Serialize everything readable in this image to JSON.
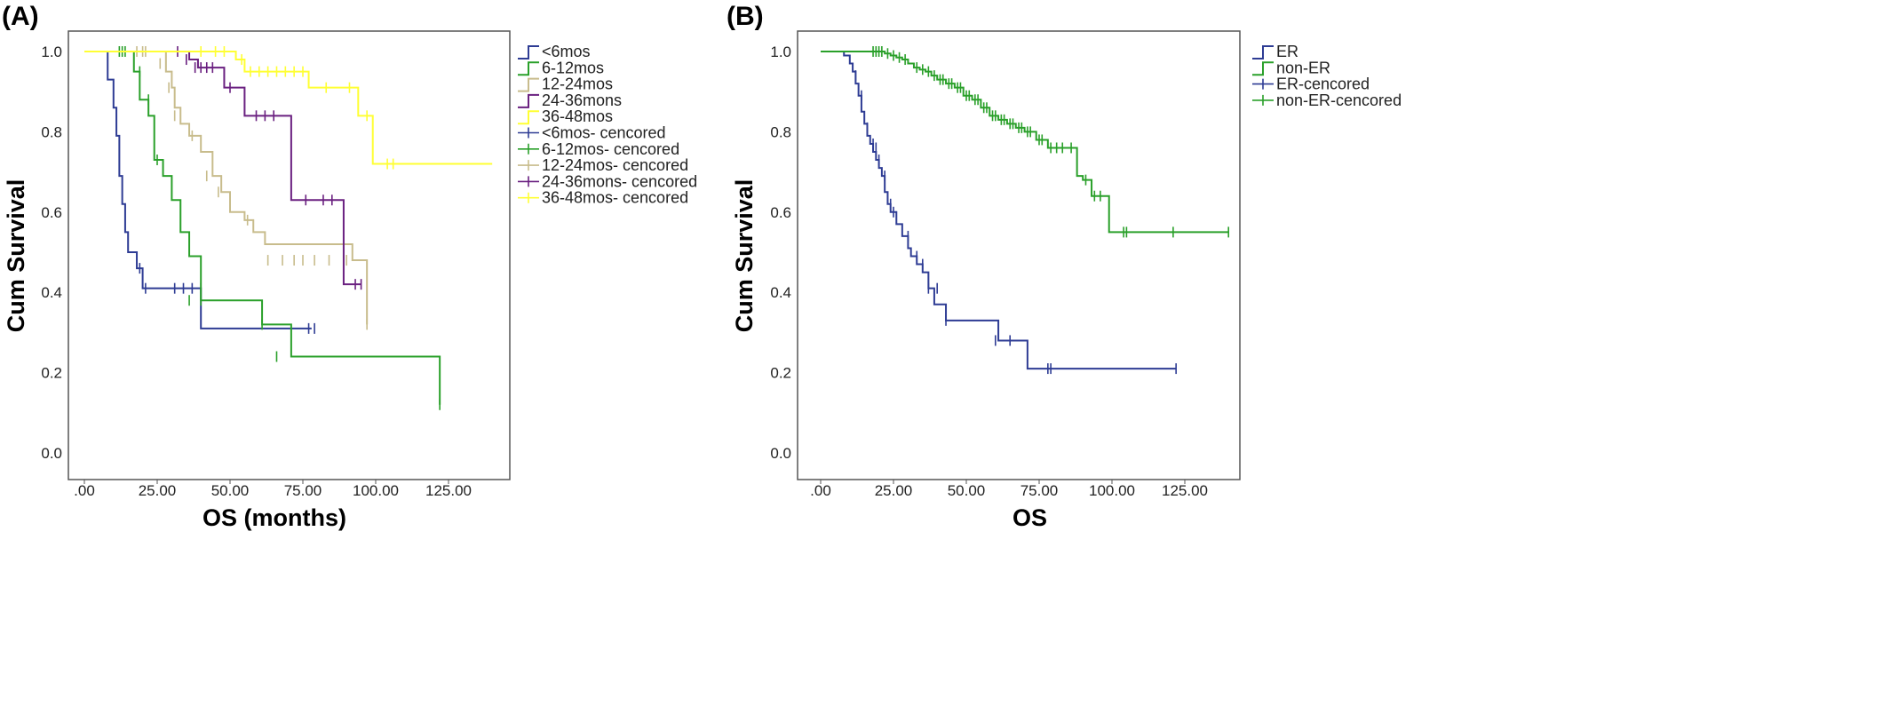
{
  "chart_data": [
    {
      "type": "line",
      "panel_label": "(A)",
      "xlabel": "OS (months)",
      "ylabel": "Cum Survival",
      "xticks": [
        ".00",
        "25.00",
        "50.00",
        "75.00",
        "100.00",
        "125.00"
      ],
      "yticks": [
        "0.0",
        "0.2",
        "0.4",
        "0.6",
        "0.8",
        "1.0"
      ],
      "xlim": [
        -5,
        140
      ],
      "ylim": [
        -0.04,
        1.04
      ],
      "grid": false,
      "legend_position": "right",
      "legend": [
        "<6mos",
        "6-12mos",
        "12-24mos",
        "24-36mons",
        "36-48mos",
        "<6mos- cencored",
        "6-12mos- cencored",
        "12-24mos- cencored",
        "24-36mons- cencored",
        "36-48mos- cencored"
      ],
      "series": [
        {
          "name": "<6mos",
          "color": "#2e3c94",
          "x": [
            0,
            6,
            8,
            10,
            11,
            12,
            13,
            14,
            15,
            18,
            20,
            40,
            78
          ],
          "y": [
            1.0,
            1.0,
            0.93,
            0.86,
            0.79,
            0.69,
            0.62,
            0.55,
            0.5,
            0.46,
            0.41,
            0.31,
            0.31
          ],
          "censored": [
            [
              19,
              0.46
            ],
            [
              21,
              0.41
            ],
            [
              31,
              0.41
            ],
            [
              34,
              0.41
            ],
            [
              37,
              0.41
            ],
            [
              40,
              0.41
            ],
            [
              77,
              0.31
            ],
            [
              79,
              0.31
            ]
          ]
        },
        {
          "name": "6-12mos",
          "color": "#2aa02a",
          "x": [
            0,
            14,
            17,
            19,
            22,
            24,
            27,
            30,
            33,
            36,
            40,
            61,
            71,
            122
          ],
          "y": [
            1.0,
            1.0,
            0.95,
            0.88,
            0.84,
            0.73,
            0.69,
            0.63,
            0.55,
            0.49,
            0.38,
            0.32,
            0.24,
            0.12
          ],
          "censored": [
            [
              12,
              1.0
            ],
            [
              13,
              1.0
            ],
            [
              14,
              1.0
            ],
            [
              19,
              0.95
            ],
            [
              22,
              0.88
            ],
            [
              25,
              0.73
            ],
            [
              36,
              0.38
            ],
            [
              40,
              0.38
            ],
            [
              61,
              0.32
            ],
            [
              66,
              0.24
            ],
            [
              122,
              0.12
            ]
          ]
        },
        {
          "name": "12-24mos",
          "color": "#c8bc8c",
          "x": [
            0,
            25,
            28,
            30,
            31,
            33,
            36,
            40,
            44,
            47,
            50,
            55,
            58,
            62,
            92,
            97
          ],
          "y": [
            1.0,
            1.0,
            0.95,
            0.91,
            0.86,
            0.82,
            0.79,
            0.75,
            0.69,
            0.65,
            0.6,
            0.58,
            0.55,
            0.52,
            0.48,
            0.32
          ],
          "censored": [
            [
              18,
              1.0
            ],
            [
              20,
              1.0
            ],
            [
              21,
              1.0
            ],
            [
              26,
              0.97
            ],
            [
              29,
              0.91
            ],
            [
              31,
              0.84
            ],
            [
              37,
              0.79
            ],
            [
              42,
              0.69
            ],
            [
              46,
              0.65
            ],
            [
              56,
              0.58
            ],
            [
              63,
              0.48
            ],
            [
              68,
              0.48
            ],
            [
              72,
              0.48
            ],
            [
              75,
              0.48
            ],
            [
              79,
              0.48
            ],
            [
              84,
              0.48
            ],
            [
              90,
              0.48
            ],
            [
              97,
              0.32
            ]
          ]
        },
        {
          "name": "24-36mons",
          "color": "#6a2080",
          "x": [
            0,
            33,
            36,
            39,
            48,
            55,
            71,
            89,
            95
          ],
          "y": [
            1.0,
            1.0,
            0.98,
            0.96,
            0.91,
            0.84,
            0.63,
            0.42,
            0.42
          ],
          "censored": [
            [
              32,
              1.0
            ],
            [
              35,
              0.98
            ],
            [
              38,
              0.96
            ],
            [
              40,
              0.96
            ],
            [
              42,
              0.96
            ],
            [
              44,
              0.96
            ],
            [
              50,
              0.91
            ],
            [
              59,
              0.84
            ],
            [
              62,
              0.84
            ],
            [
              65,
              0.84
            ],
            [
              76,
              0.63
            ],
            [
              82,
              0.63
            ],
            [
              85,
              0.63
            ],
            [
              93,
              0.42
            ],
            [
              95,
              0.42
            ]
          ]
        },
        {
          "name": "36-48mos",
          "color": "#ffff33",
          "x": [
            0,
            48,
            52,
            55,
            77,
            94,
            99,
            140
          ],
          "y": [
            1.0,
            1.0,
            0.98,
            0.95,
            0.91,
            0.84,
            0.72,
            0.72
          ],
          "censored": [
            [
              40,
              1.0
            ],
            [
              45,
              1.0
            ],
            [
              48,
              1.0
            ],
            [
              54,
              0.98
            ],
            [
              57,
              0.95
            ],
            [
              60,
              0.95
            ],
            [
              63,
              0.95
            ],
            [
              66,
              0.95
            ],
            [
              69,
              0.95
            ],
            [
              72,
              0.95
            ],
            [
              75,
              0.95
            ],
            [
              83,
              0.91
            ],
            [
              91,
              0.91
            ],
            [
              97,
              0.84
            ],
            [
              104,
              0.72
            ],
            [
              106,
              0.72
            ]
          ]
        }
      ]
    },
    {
      "type": "line",
      "panel_label": "(B)",
      "xlabel": "OS",
      "ylabel": "Cum Survival",
      "xticks": [
        ".00",
        "25.00",
        "50.00",
        "75.00",
        "100.00",
        "125.00"
      ],
      "yticks": [
        "0.0",
        "0.2",
        "0.4",
        "0.6",
        "0.8",
        "1.0"
      ],
      "xlim": [
        -5,
        140
      ],
      "ylim": [
        -0.04,
        1.04
      ],
      "grid": false,
      "legend_position": "top-right",
      "legend": [
        "ER",
        "non-ER",
        "ER-cencored",
        "non-ER-cencored"
      ],
      "series": [
        {
          "name": "ER",
          "color": "#2e3c94",
          "x": [
            0,
            6,
            8,
            10,
            11,
            12,
            13,
            14,
            15,
            16,
            17,
            18,
            19,
            20,
            21,
            22,
            23,
            24,
            26,
            28,
            30,
            31,
            33,
            35,
            37,
            39,
            43,
            61,
            71,
            122
          ],
          "y": [
            1.0,
            1.0,
            0.99,
            0.97,
            0.95,
            0.92,
            0.89,
            0.85,
            0.82,
            0.79,
            0.77,
            0.75,
            0.73,
            0.71,
            0.69,
            0.65,
            0.62,
            0.6,
            0.57,
            0.54,
            0.51,
            0.49,
            0.47,
            0.45,
            0.41,
            0.37,
            0.33,
            0.28,
            0.21,
            0.21
          ],
          "censored": [
            [
              12,
              0.94
            ],
            [
              14,
              0.89
            ],
            [
              16,
              0.81
            ],
            [
              18,
              0.77
            ],
            [
              19,
              0.76
            ],
            [
              20,
              0.73
            ],
            [
              22,
              0.69
            ],
            [
              24,
              0.62
            ],
            [
              25,
              0.6
            ],
            [
              30,
              0.54
            ],
            [
              33,
              0.49
            ],
            [
              35,
              0.47
            ],
            [
              37,
              0.41
            ],
            [
              40,
              0.41
            ],
            [
              43,
              0.33
            ],
            [
              60,
              0.28
            ],
            [
              65,
              0.28
            ],
            [
              78,
              0.21
            ],
            [
              79,
              0.21
            ],
            [
              122,
              0.21
            ]
          ]
        },
        {
          "name": "non-ER",
          "color": "#2aa02a",
          "x": [
            0,
            20,
            22,
            24,
            26,
            28,
            30,
            32,
            34,
            36,
            38,
            40,
            43,
            46,
            49,
            52,
            55,
            58,
            61,
            64,
            67,
            70,
            74,
            78,
            85,
            88,
            90,
            93,
            99,
            140
          ],
          "y": [
            1.0,
            1.0,
            0.995,
            0.99,
            0.985,
            0.98,
            0.97,
            0.96,
            0.955,
            0.95,
            0.94,
            0.93,
            0.92,
            0.91,
            0.89,
            0.88,
            0.86,
            0.84,
            0.83,
            0.82,
            0.81,
            0.8,
            0.78,
            0.76,
            0.76,
            0.69,
            0.68,
            0.64,
            0.55,
            0.55
          ],
          "censored": [
            [
              18,
              1.0
            ],
            [
              19,
              1.0
            ],
            [
              20,
              1.0
            ],
            [
              21,
              1.0
            ],
            [
              23,
              0.995
            ],
            [
              25,
              0.99
            ],
            [
              27,
              0.985
            ],
            [
              29,
              0.98
            ],
            [
              33,
              0.96
            ],
            [
              35,
              0.955
            ],
            [
              37,
              0.95
            ],
            [
              39,
              0.94
            ],
            [
              41,
              0.93
            ],
            [
              42,
              0.93
            ],
            [
              44,
              0.92
            ],
            [
              45,
              0.92
            ],
            [
              47,
              0.91
            ],
            [
              48,
              0.91
            ],
            [
              50,
              0.89
            ],
            [
              51,
              0.89
            ],
            [
              53,
              0.88
            ],
            [
              54,
              0.88
            ],
            [
              56,
              0.86
            ],
            [
              57,
              0.86
            ],
            [
              59,
              0.84
            ],
            [
              60,
              0.84
            ],
            [
              62,
              0.83
            ],
            [
              63,
              0.83
            ],
            [
              65,
              0.82
            ],
            [
              66,
              0.82
            ],
            [
              68,
              0.81
            ],
            [
              69,
              0.81
            ],
            [
              71,
              0.8
            ],
            [
              72,
              0.8
            ],
            [
              75,
              0.78
            ],
            [
              76,
              0.78
            ],
            [
              79,
              0.76
            ],
            [
              81,
              0.76
            ],
            [
              83,
              0.76
            ],
            [
              86,
              0.76
            ],
            [
              91,
              0.68
            ],
            [
              94,
              0.64
            ],
            [
              96,
              0.64
            ],
            [
              104,
              0.55
            ],
            [
              105,
              0.55
            ],
            [
              121,
              0.55
            ],
            [
              140,
              0.55
            ]
          ]
        }
      ]
    }
  ]
}
